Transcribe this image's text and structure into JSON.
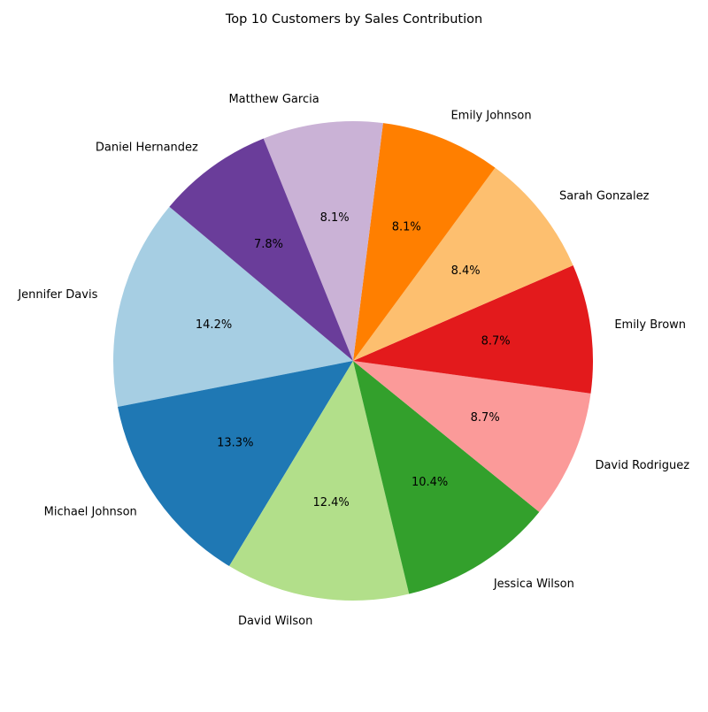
{
  "chart_data": {
    "type": "pie",
    "title": "Top 10 Customers by Sales Contribution",
    "start_angle_deg": 140,
    "direction": "counterclockwise",
    "slices": [
      {
        "label": "Jennifer Davis",
        "value": 14.2,
        "pct_label": "14.2%",
        "color": "#a6cee3"
      },
      {
        "label": "Michael Johnson",
        "value": 13.3,
        "pct_label": "13.3%",
        "color": "#1f78b4"
      },
      {
        "label": "David Wilson",
        "value": 12.4,
        "pct_label": "12.4%",
        "color": "#b2df8a"
      },
      {
        "label": "Jessica Wilson",
        "value": 10.4,
        "pct_label": "10.4%",
        "color": "#33a02c"
      },
      {
        "label": "David Rodriguez",
        "value": 8.7,
        "pct_label": "8.7%",
        "color": "#fb9a99"
      },
      {
        "label": "Emily Brown",
        "value": 8.7,
        "pct_label": "8.7%",
        "color": "#e31a1c"
      },
      {
        "label": "Sarah Gonzalez",
        "value": 8.4,
        "pct_label": "8.4%",
        "color": "#fdbf6f"
      },
      {
        "label": "Emily Johnson",
        "value": 8.1,
        "pct_label": "8.1%",
        "color": "#ff7f00"
      },
      {
        "label": "Matthew Garcia",
        "value": 8.1,
        "pct_label": "8.1%",
        "color": "#cab2d6"
      },
      {
        "label": "Daniel Hernandez",
        "value": 7.8,
        "pct_label": "7.8%",
        "color": "#6a3d9a"
      }
    ]
  }
}
